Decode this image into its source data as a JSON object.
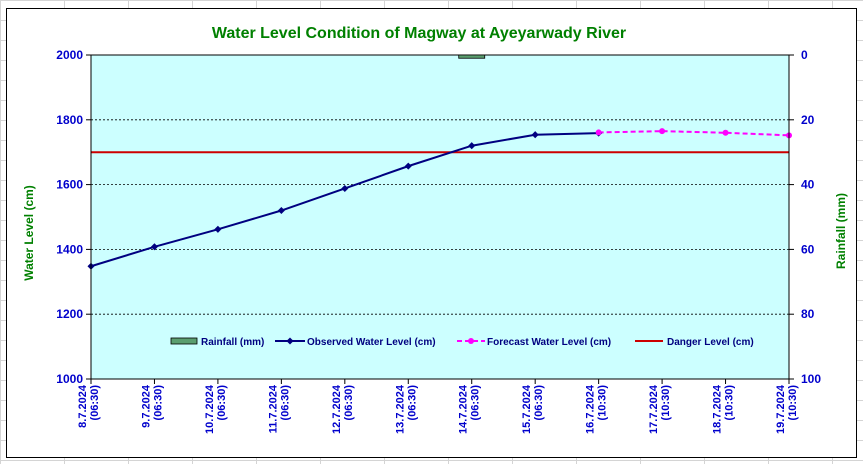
{
  "chart_data": {
    "type": "line",
    "title": "Water Level Condition of Magway at Ayeyarwady River",
    "ylabel": "Water Level (cm)",
    "y2label": "Rainfall (mm)",
    "ylim": [
      1000,
      2000
    ],
    "y2lim": [
      100,
      0
    ],
    "yticks": [
      "1000",
      "1200",
      "1400",
      "1600",
      "1800",
      "2000"
    ],
    "y2ticks": [
      "100",
      "80",
      "60",
      "40",
      "20",
      "0"
    ],
    "categories": [
      [
        "8.7.2024",
        "(06:30)"
      ],
      [
        "9.7.2024",
        "(06:30)"
      ],
      [
        "10.7.2024",
        "(06:30)"
      ],
      [
        "11.7.2024",
        "(06:30)"
      ],
      [
        "12.7.2024",
        "(06:30)"
      ],
      [
        "13.7.2024",
        "(06:30)"
      ],
      [
        "14.7.2024",
        "(06:30)"
      ],
      [
        "15.7.2024",
        "(06:30)"
      ],
      [
        "16.7.2024",
        "(10:30)"
      ],
      [
        "17.7.2024",
        "(10:30)"
      ],
      [
        "18.7.2024",
        "(10:30)"
      ],
      [
        "19.7.2024",
        "(10:30)"
      ]
    ],
    "grid": true,
    "legend_position": "bottom-right",
    "series": [
      {
        "name": "Rainfall (mm)",
        "kind": "bar",
        "axis": "right",
        "color": "#5a9e6f",
        "values": [
          0,
          0,
          0,
          0,
          0,
          0,
          1,
          0,
          0,
          0,
          0,
          0
        ]
      },
      {
        "name": "Observed Water Level (cm)",
        "kind": "line",
        "axis": "left",
        "color": "#000080",
        "values": [
          1348,
          1408,
          1462,
          1520,
          1588,
          1657,
          1720,
          1754,
          1759,
          null,
          null,
          null
        ]
      },
      {
        "name": "Forecast Water Level (cm)",
        "kind": "dashed-line",
        "axis": "left",
        "color": "#ff00ff",
        "values": [
          null,
          null,
          null,
          null,
          null,
          null,
          null,
          null,
          1761,
          1765,
          1760,
          1752
        ]
      },
      {
        "name": "Danger Level (cm)",
        "kind": "constant-line",
        "axis": "left",
        "color": "#cc0000",
        "value": 1700
      }
    ],
    "colors": {
      "plot_background": "#ccffff",
      "title": "#008000",
      "axis_labels": "#008000",
      "tick_labels": "#0000cc"
    }
  }
}
